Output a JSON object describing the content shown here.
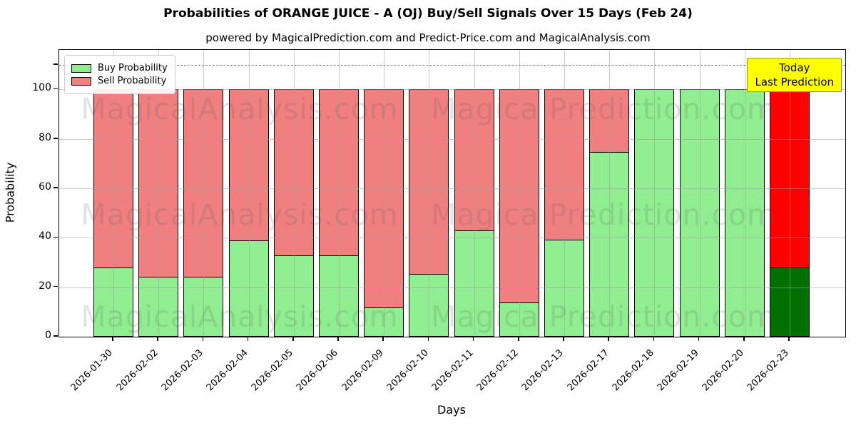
{
  "title": "Probabilities of ORANGE JUICE - A (OJ) Buy/Sell Signals Over 15 Days (Feb 24)",
  "subtitle": "powered by MagicalPrediction.com and Predict-Price.com and MagicalAnalysis.com",
  "legend": {
    "items": [
      {
        "label": "Buy Probability",
        "color": "#90EE90"
      },
      {
        "label": "Sell Probability",
        "color": "#F08080"
      }
    ]
  },
  "annotation_box": {
    "lines": [
      "Today",
      "Last Prediction"
    ],
    "bg_color": "#FFFF00"
  },
  "watermarks": {
    "left_text": "MagicalAnalysis.com",
    "right_text": "Magica Prediction.com"
  },
  "axes": {
    "xlabel": "Days",
    "ylabel": "Probability",
    "yticks": [
      0,
      20,
      40,
      60,
      80,
      100
    ],
    "ylim": [
      0,
      116
    ],
    "dashed_line_y": 110,
    "grid": true
  },
  "chart_data": {
    "type": "bar",
    "stacked": true,
    "title": "Probabilities of ORANGE JUICE - A (OJ) Buy/Sell Signals Over 15 Days (Feb 24)",
    "xlabel": "Days",
    "ylabel": "Probability",
    "ylim": [
      0,
      116
    ],
    "legend_position": "upper-left",
    "categories": [
      "2026-01-30",
      "2026-02-02",
      "2026-02-03",
      "2026-02-04",
      "2026-02-05",
      "2026-02-06",
      "2026-02-09",
      "2026-02-10",
      "2026-02-11",
      "2026-02-12",
      "2026-02-13",
      "2026-02-17",
      "2026-02-18",
      "2026-02-19",
      "2026-02-20",
      "2026-02-23"
    ],
    "series": [
      {
        "name": "Buy Probability",
        "color": "#90EE90",
        "values": [
          28,
          24.5,
          24.5,
          39,
          33,
          33,
          12,
          25.5,
          43,
          14,
          39.5,
          75,
          100,
          100,
          100,
          28
        ]
      },
      {
        "name": "Sell Probability",
        "color": "#F08080",
        "values": [
          72,
          75.5,
          75.5,
          61,
          67,
          67,
          88,
          74.5,
          57,
          86,
          60.5,
          25,
          0,
          0,
          0,
          72
        ]
      }
    ],
    "today_bar": {
      "category": "2026-02-23",
      "index": 15,
      "buy_color": "#007000",
      "sell_color": "#FF0000",
      "note": "Today / Last Prediction"
    }
  }
}
